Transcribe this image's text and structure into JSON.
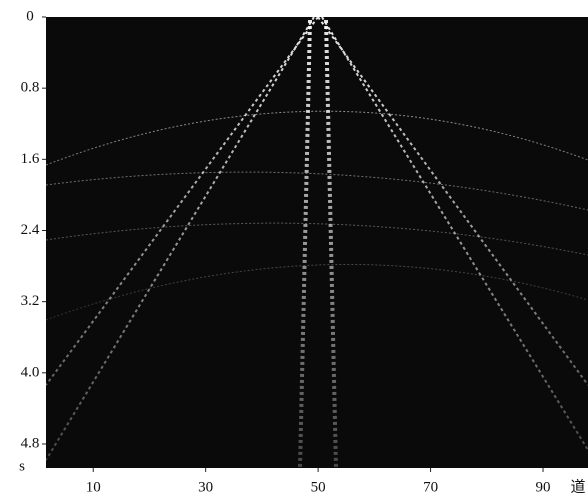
{
  "chart_data": {
    "type": "image",
    "x_label": "道",
    "y_label": "s",
    "xlim": [
      1.6,
      98
    ],
    "xticks": [
      10,
      30,
      50,
      70,
      90
    ],
    "ylim": [
      0,
      5.07
    ],
    "yticks": [
      0,
      0.8,
      1.6,
      2.4,
      3.2,
      {
        "value": 4,
        "label": "4.0"
      },
      4.8
    ],
    "y_inverted": true,
    "background": "#0a0a0a"
  }
}
